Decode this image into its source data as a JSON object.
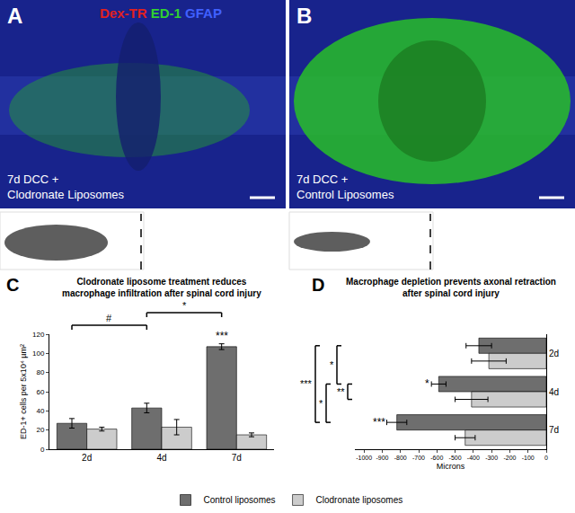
{
  "panels": [
    {
      "letter": "A",
      "caption": "7d DCC +\nClodronate Liposomes",
      "stain_labels": [
        {
          "text": "Dex-TR",
          "color": "#e02020"
        },
        {
          "text": "ED-1",
          "color": "#30d030"
        },
        {
          "text": "GFAP",
          "color": "#4060ff"
        }
      ]
    },
    {
      "letter": "B",
      "caption": "7d DCC +\nControl Liposomes"
    }
  ],
  "chart_data": [
    {
      "type": "bar",
      "panel": "C",
      "title": "Clodronate liposome treatment reduces\nmacrophage infiltration after spinal cord injury",
      "ylabel": "ED-1+ cells per 5x10⁴ µm²",
      "categories": [
        "2d",
        "4d",
        "7d"
      ],
      "series": [
        {
          "name": "Control liposomes",
          "color": "#6e6e6e",
          "values": [
            27,
            43,
            107
          ],
          "errors": [
            5,
            5,
            3
          ],
          "significance": [
            null,
            null,
            "***"
          ]
        },
        {
          "name": "Clodronate liposomes",
          "color": "#cccccc",
          "values": [
            21,
            23,
            15
          ],
          "errors": [
            2,
            8,
            2
          ]
        }
      ],
      "ylim": [
        0,
        120
      ],
      "yticks": [
        0,
        20,
        40,
        60,
        80,
        100,
        120
      ],
      "grid": false,
      "legend": "bottom",
      "comparisons": [
        {
          "text": "#",
          "from": {
            "category": "2d",
            "series": "Control liposomes"
          },
          "to": {
            "category": "4d",
            "series": "Control liposomes"
          }
        },
        {
          "text": "*",
          "from": {
            "category": "4d",
            "series": "Control liposomes"
          },
          "to": {
            "category": "7d",
            "series": "Control liposomes"
          }
        }
      ]
    },
    {
      "type": "bar",
      "panel": "D",
      "orientation": "horizontal",
      "title": "Macrophage depletion prevents axonal retraction\nafter spinal cord injury",
      "xlabel": "Microns",
      "categories": [
        "2d",
        "4d",
        "7d"
      ],
      "series": [
        {
          "name": "Control liposomes",
          "color": "#6e6e6e",
          "values": [
            -370,
            -590,
            -820
          ],
          "errors": [
            70,
            40,
            55
          ],
          "significance": [
            null,
            "*",
            "***"
          ]
        },
        {
          "name": "Clodronate liposomes",
          "color": "#cccccc",
          "values": [
            -315,
            -410,
            -445
          ],
          "errors": [
            95,
            90,
            55
          ]
        }
      ],
      "xlim": [
        -1050,
        0
      ],
      "xticks": [
        -1000,
        -900,
        -800,
        -700,
        -600,
        -500,
        -400,
        -300,
        -200,
        -100,
        0
      ],
      "grid": false,
      "comparisons": [
        {
          "text": "**",
          "from": {
            "category": "4d",
            "series": "Control liposomes"
          },
          "to": {
            "category": "4d",
            "series": "Clodronate liposomes"
          }
        },
        {
          "text": "*",
          "from": {
            "category": "2d",
            "series": "Control liposomes"
          },
          "to": {
            "category": "4d",
            "series": "Control liposomes"
          }
        },
        {
          "text": "*",
          "from": {
            "category": "4d",
            "series": "Control liposomes"
          },
          "to": {
            "category": "7d",
            "series": "Control liposomes"
          }
        },
        {
          "text": "***",
          "from": {
            "category": "2d",
            "series": "Control liposomes"
          },
          "to": {
            "category": "7d",
            "series": "Control liposomes"
          }
        }
      ]
    }
  ]
}
